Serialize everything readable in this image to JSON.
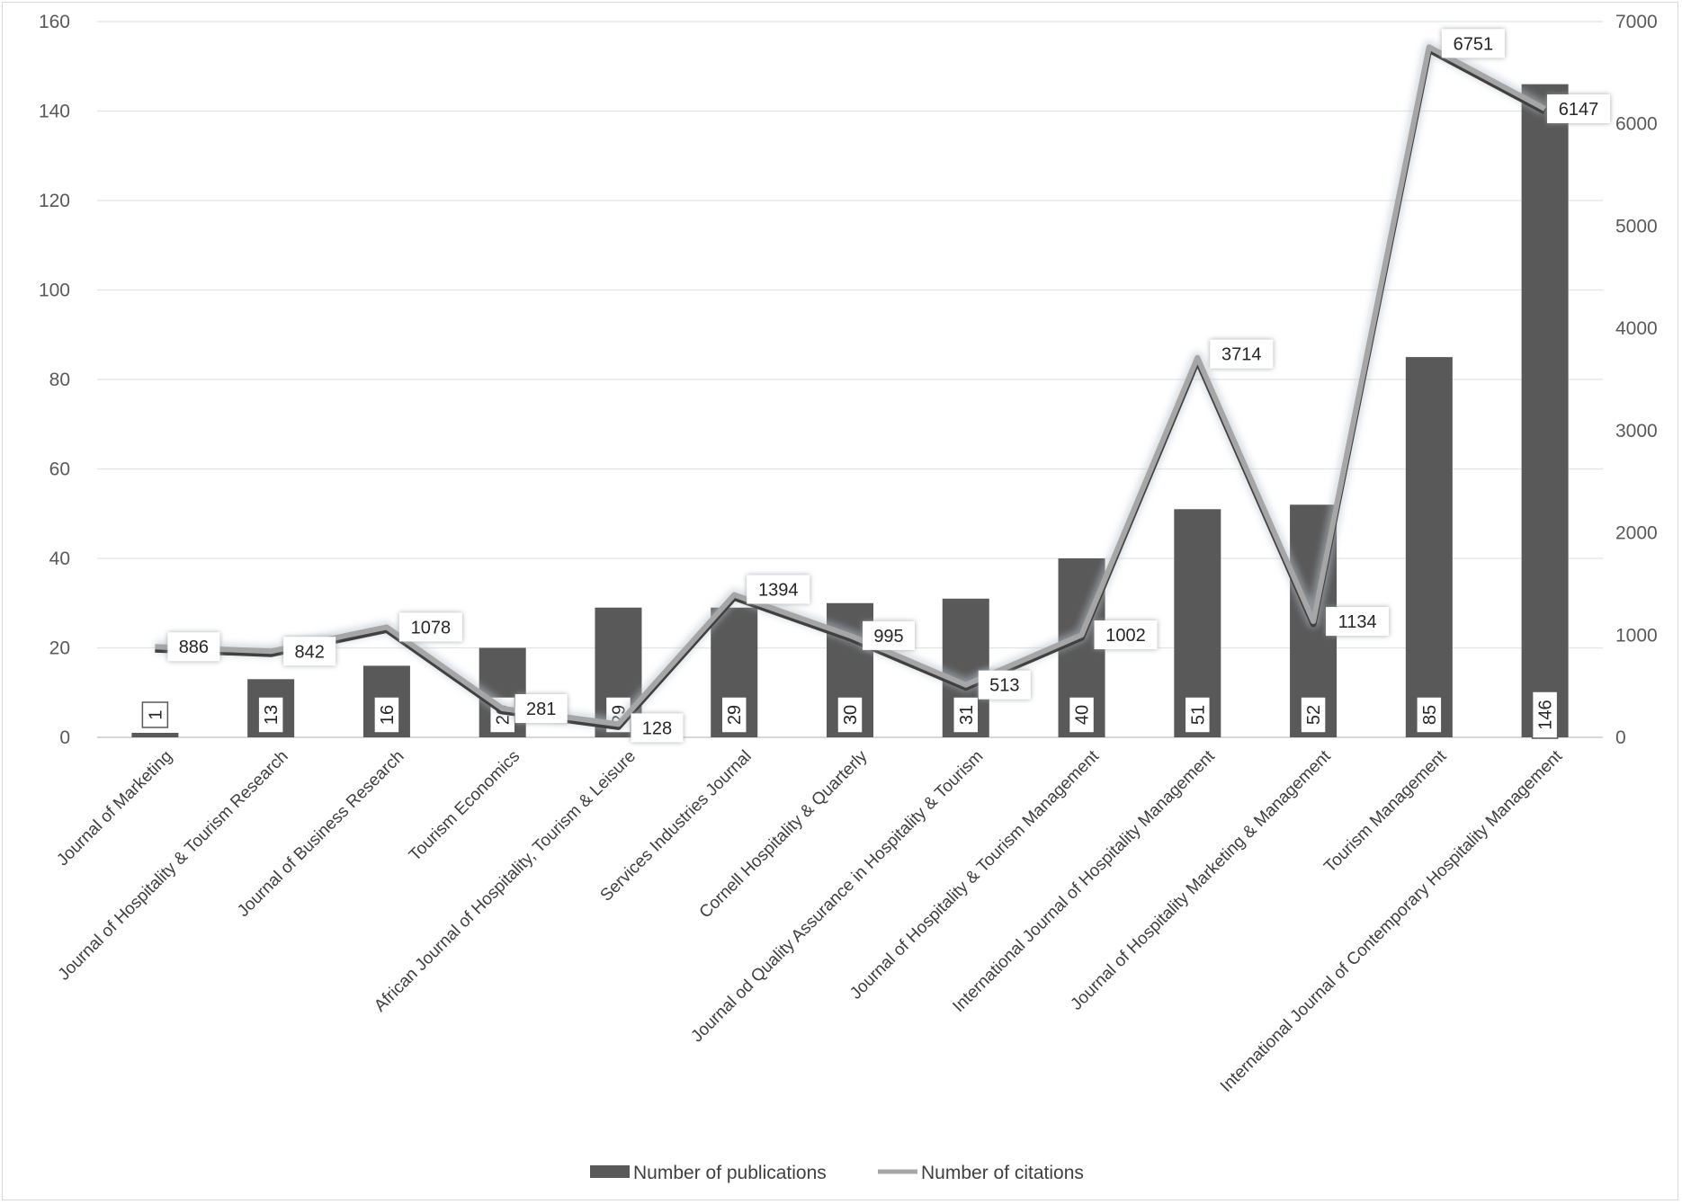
{
  "chart_data": {
    "type": "bar",
    "categories": [
      "Journal of Marketing",
      "Journal of Hospitality & Tourism Research",
      "Journal of Business Research",
      "Tourism Economics",
      "African Journal of Hospitality, Tourism & Leisure",
      "Services Industries Journal",
      "Cornell Hospitality & Quarterly",
      "Journal od Quality Assurance in Hospitality & Tourism",
      "Journal of Hospitality & Tourism Management",
      "International Journal of Hospitality Management",
      "Journal of Hospitality Marketing & Management",
      "Tourism Management",
      "International Journal of Contemporary Hospitality Management"
    ],
    "series": [
      {
        "name": "Number of publications",
        "type": "bar",
        "axis": "left",
        "color": "#595959",
        "values": [
          1,
          13,
          16,
          20,
          29,
          29,
          30,
          31,
          40,
          51,
          52,
          85,
          146
        ]
      },
      {
        "name": "Number of citations",
        "type": "line",
        "axis": "right",
        "color": "#a6a6a6",
        "values": [
          886,
          842,
          1078,
          281,
          128,
          1394,
          995,
          513,
          1002,
          3714,
          1134,
          6751,
          6147
        ]
      }
    ],
    "y_left": {
      "min": 0,
      "max": 160,
      "ticks": [
        0,
        20,
        40,
        60,
        80,
        100,
        120,
        140,
        160
      ]
    },
    "y_right": {
      "min": 0,
      "max": 7000,
      "ticks": [
        0,
        1000,
        2000,
        3000,
        4000,
        5000,
        6000,
        7000
      ]
    },
    "grid": true,
    "legend": "bottom-center"
  }
}
